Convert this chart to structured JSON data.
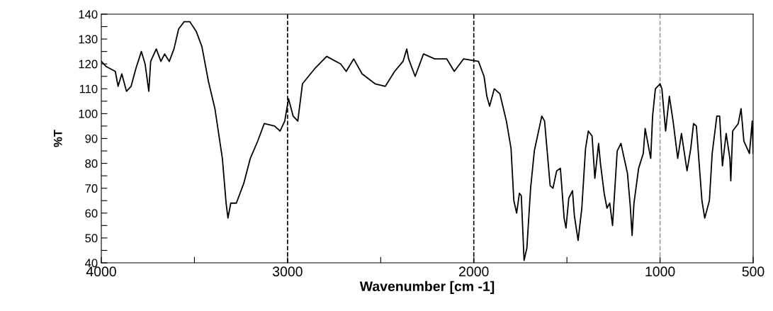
{
  "chart_data": {
    "type": "line",
    "xlabel": "Wavenumber [cm -1]",
    "ylabel": "%T",
    "x": [
      4000,
      3975,
      3925,
      3910,
      3890,
      3865,
      3840,
      3815,
      3785,
      3765,
      3745,
      3735,
      3705,
      3680,
      3660,
      3635,
      3610,
      3585,
      3555,
      3525,
      3490,
      3460,
      3425,
      3390,
      3350,
      3330,
      3320,
      3305,
      3275,
      3235,
      3200,
      3160,
      3125,
      3070,
      3040,
      3015,
      2995,
      2970,
      2945,
      2920,
      2855,
      2790,
      2715,
      2685,
      2645,
      2600,
      2530,
      2475,
      2425,
      2380,
      2360,
      2350,
      2315,
      2270,
      2210,
      2145,
      2105,
      2055,
      1975,
      1945,
      1930,
      1915,
      1890,
      1860,
      1825,
      1800,
      1785,
      1770,
      1755,
      1745,
      1730,
      1715,
      1695,
      1675,
      1635,
      1620,
      1590,
      1575,
      1555,
      1535,
      1515,
      1505,
      1490,
      1470,
      1460,
      1440,
      1420,
      1400,
      1385,
      1365,
      1350,
      1330,
      1320,
      1300,
      1285,
      1270,
      1255,
      1230,
      1210,
      1175,
      1160,
      1150,
      1140,
      1115,
      1090,
      1080,
      1050,
      1040,
      1025,
      1000,
      990,
      970,
      950,
      930,
      905,
      885,
      855,
      835,
      820,
      805,
      790,
      775,
      760,
      735,
      720,
      695,
      680,
      665,
      645,
      625,
      620,
      610,
      580,
      565,
      550,
      520,
      505,
      500
    ],
    "series": [
      {
        "color": "#000000",
        "values": [
          121,
          119,
          117,
          111,
          116,
          109,
          111,
          118,
          125,
          120,
          109,
          121,
          126,
          121,
          124,
          121,
          126,
          134,
          137,
          137,
          133,
          127,
          113,
          102,
          82,
          64,
          58,
          64,
          64,
          72,
          82,
          89,
          96,
          95,
          93,
          97,
          106,
          99,
          97,
          112,
          118,
          123,
          120,
          117,
          122,
          116,
          112,
          111,
          117,
          121,
          126,
          122,
          115,
          124,
          122,
          122,
          117,
          122,
          121,
          115,
          107,
          103,
          110,
          108,
          97,
          86,
          65,
          60,
          68,
          67,
          41,
          46,
          70,
          85,
          99,
          97,
          71,
          70,
          77,
          78,
          58,
          54,
          66,
          69,
          59,
          49,
          62,
          86,
          93,
          91,
          74,
          88,
          80,
          68,
          62,
          64,
          55,
          85,
          88,
          76,
          63,
          51,
          64,
          78,
          84,
          94,
          82,
          99,
          110,
          112,
          110,
          93,
          107,
          97,
          82,
          92,
          77,
          86,
          96,
          95,
          80,
          65,
          58,
          65,
          84,
          99,
          99,
          79,
          92,
          82,
          73,
          93,
          96,
          102,
          89,
          84,
          97,
          84
        ]
      }
    ],
    "xlim": [
      4000,
      500
    ],
    "ylim": [
      40,
      140
    ],
    "xticks": [
      4000,
      {
        "value": 3500,
        "label": null
      },
      3000,
      {
        "value": 2500,
        "label": null
      },
      2000,
      {
        "value": 1500,
        "label": null
      },
      1000,
      500
    ],
    "yticks": [
      40,
      {
        "value": 45,
        "label": null
      },
      50,
      {
        "value": 55,
        "label": null
      },
      60,
      {
        "value": 65,
        "label": null
      },
      70,
      {
        "value": 75,
        "label": null
      },
      80,
      {
        "value": 85,
        "label": null
      },
      90,
      {
        "value": 95,
        "label": null
      },
      100,
      {
        "value": 105,
        "label": null
      },
      110,
      {
        "value": 115,
        "label": null
      },
      120,
      {
        "value": 125,
        "label": null
      },
      130,
      {
        "value": 135,
        "label": null
      },
      140
    ],
    "ref_lines": [
      {
        "axis": "x",
        "value": 3000,
        "line_style": "dashed",
        "color": "#000000"
      },
      {
        "axis": "x",
        "value": 2000,
        "line_style": "dashed",
        "color": "#000000"
      },
      {
        "axis": "x",
        "value": 1000,
        "line_style": "dashed",
        "color": "#999999"
      }
    ],
    "grid": false,
    "legend": false,
    "marker": "none",
    "line_style": "solid"
  }
}
